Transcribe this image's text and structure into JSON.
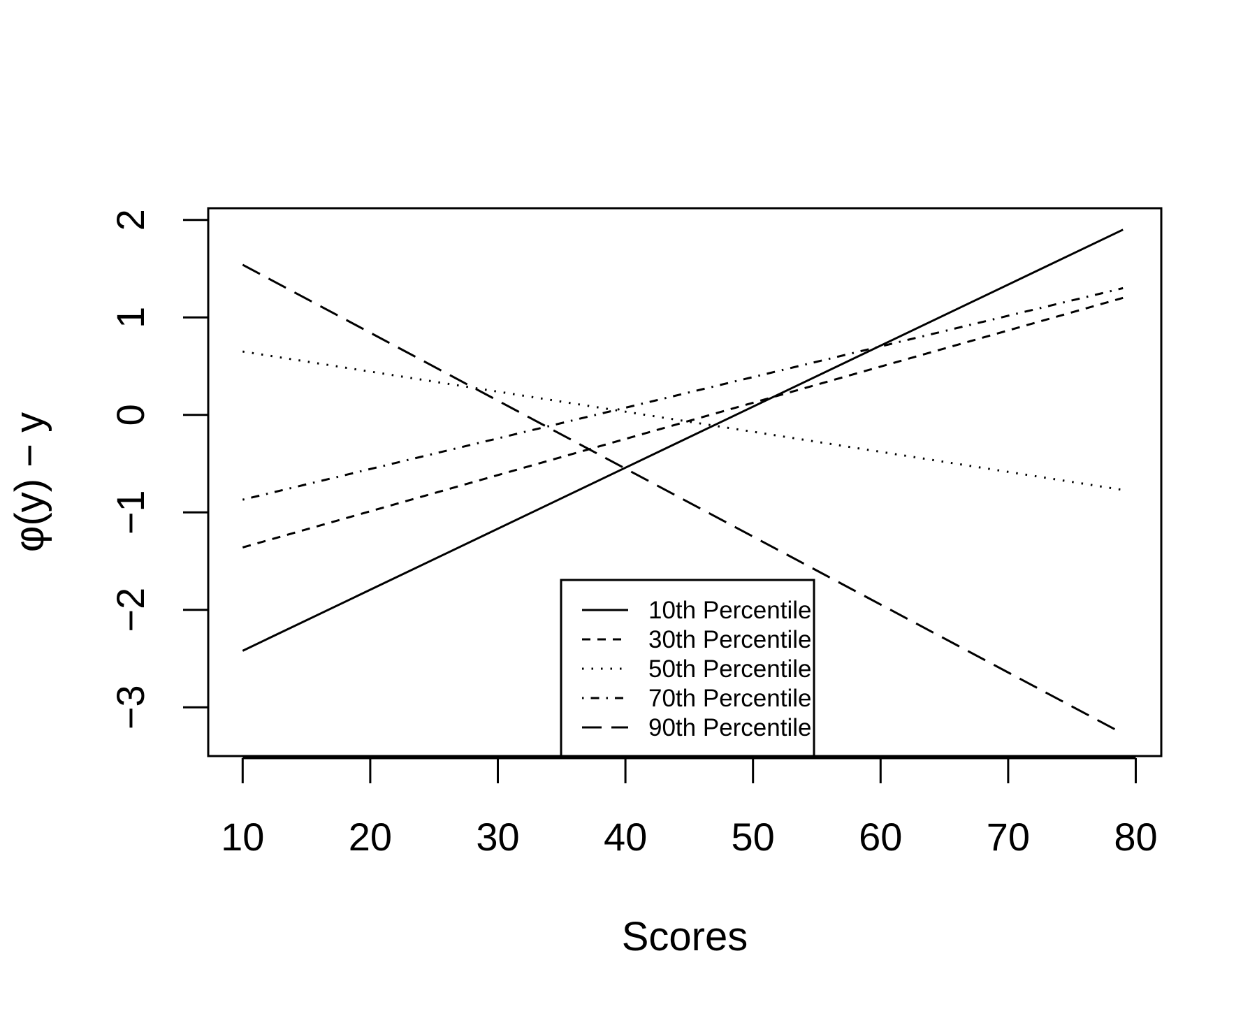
{
  "chart_data": {
    "type": "line",
    "title": "",
    "xlabel": "Scores",
    "ylabel": "φ(y) − y",
    "xlim": [
      7.3,
      82.0
    ],
    "ylim": [
      -3.5,
      2.12
    ],
    "x_ticks": [
      10,
      20,
      30,
      40,
      50,
      60,
      70,
      80
    ],
    "y_ticks": [
      -3,
      -2,
      -1,
      0,
      1,
      2
    ],
    "x_tick_labels": [
      "10",
      "20",
      "30",
      "40",
      "50",
      "60",
      "70",
      "80"
    ],
    "y_tick_labels": [
      "−3",
      "−2",
      "−1",
      "0",
      "1",
      "2"
    ],
    "grid": false,
    "legend_position": "bottom-center",
    "series": [
      {
        "name": "10th Percentile",
        "linestyle": "solid",
        "x": [
          10,
          79
        ],
        "y": [
          -2.42,
          1.9
        ]
      },
      {
        "name": "30th Percentile",
        "linestyle": "dashed",
        "x": [
          10,
          79
        ],
        "y": [
          -1.36,
          1.2
        ]
      },
      {
        "name": "50th Percentile",
        "linestyle": "dotted",
        "x": [
          10,
          79
        ],
        "y": [
          0.65,
          -0.77
        ]
      },
      {
        "name": "70th Percentile",
        "linestyle": "dotdash",
        "x": [
          10,
          79
        ],
        "y": [
          -0.87,
          1.3
        ]
      },
      {
        "name": "90th Percentile",
        "linestyle": "longdash",
        "x": [
          10,
          79
        ],
        "y": [
          1.54,
          -3.27
        ]
      }
    ],
    "colors": {
      "line": "#000000",
      "background": "#ffffff"
    }
  }
}
